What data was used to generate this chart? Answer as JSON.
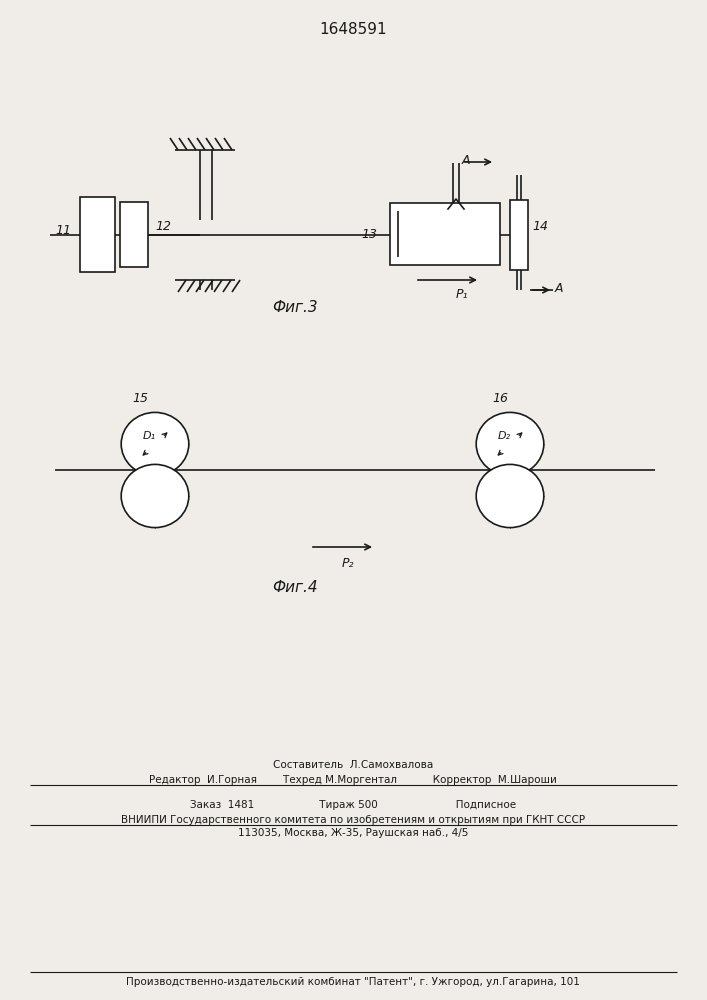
{
  "title": "1648591",
  "bg_color": "#f0ede8",
  "line_color": "#1a1a1a",
  "fig3_label": "Фиг.3",
  "fig4_label": "Фиг.4",
  "footer_lines": [
    "Составитель  Л.Самохвалова",
    "Редактор  И.Горная        Техред М.Моргентал           Корректор  М.Шароши",
    "Заказ  1481                    Тираж 500                        Подписное",
    "ВНИИПИ Государственного комитета по изобретениям и открытиям при ГКНТ СССР",
    "113035, Москва, Ж-35, Раушская наб., 4/5",
    "Производственно-издательский комбинат \"Патент\", г. Ужгород, ул.Гагарина, 101"
  ]
}
